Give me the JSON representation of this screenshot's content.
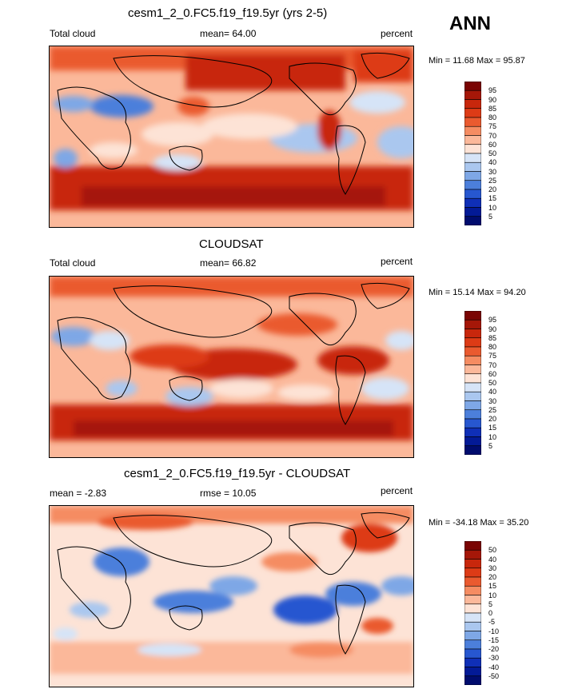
{
  "header": {
    "season": "ANN"
  },
  "chart_data": [
    {
      "type": "heatmap",
      "title": "cesm1_2_0.FC5.f19_f19.5yr (yrs 2-5)",
      "left_label": "Total cloud",
      "center_label": "mean=  64.00",
      "right_label": "percent",
      "minmax_label": "Min =  11.68 Max =  95.87",
      "min": 11.68,
      "max": 95.87,
      "mean": 64.0,
      "colorbar": {
        "levels": [
          "95",
          "90",
          "85",
          "80",
          "75",
          "70",
          "60",
          "50",
          "40",
          "30",
          "25",
          "20",
          "15",
          "10",
          "5"
        ],
        "colors": [
          "#7a0403",
          "#a51708",
          "#c8270c",
          "#dd3b16",
          "#ea5a2f",
          "#f58c62",
          "#fbb89a",
          "#fde3d6",
          "#d6e4f7",
          "#aac7ef",
          "#7ea7e6",
          "#4c7fdb",
          "#2757d0",
          "#0f2fb7",
          "#031a96",
          "#000c6e"
        ]
      }
    },
    {
      "type": "heatmap",
      "title": "CLOUDSAT",
      "left_label": "Total cloud",
      "center_label": "mean=  66.82",
      "right_label": "percent",
      "minmax_label": "Min =  15.14 Max =  94.20",
      "min": 15.14,
      "max": 94.2,
      "mean": 66.82,
      "colorbar": {
        "levels": [
          "95",
          "90",
          "85",
          "80",
          "75",
          "70",
          "60",
          "50",
          "40",
          "30",
          "25",
          "20",
          "15",
          "10",
          "5"
        ],
        "colors": [
          "#7a0403",
          "#a51708",
          "#c8270c",
          "#dd3b16",
          "#ea5a2f",
          "#f58c62",
          "#fbb89a",
          "#fde3d6",
          "#d6e4f7",
          "#aac7ef",
          "#7ea7e6",
          "#4c7fdb",
          "#2757d0",
          "#0f2fb7",
          "#031a96",
          "#000c6e"
        ]
      }
    },
    {
      "type": "heatmap",
      "title": "cesm1_2_0.FC5.f19_f19.5yr - CLOUDSAT",
      "left_label": "mean =  -2.83",
      "center_label": "rmse =  10.05",
      "right_label": "percent",
      "minmax_label": "Min = -34.18 Max =  35.20",
      "min": -34.18,
      "max": 35.2,
      "mean": -2.83,
      "rmse": 10.05,
      "colorbar": {
        "levels": [
          "50",
          "40",
          "30",
          "20",
          "15",
          "10",
          "5",
          "0",
          "-5",
          "-10",
          "-15",
          "-20",
          "-30",
          "-40",
          "-50"
        ],
        "colors": [
          "#7a0403",
          "#a51708",
          "#c8270c",
          "#dd3b16",
          "#ea5a2f",
          "#f58c62",
          "#fbb89a",
          "#fde3d6",
          "#d6e4f7",
          "#aac7ef",
          "#7ea7e6",
          "#4c7fdb",
          "#2757d0",
          "#0f2fb7",
          "#031a96",
          "#000c6e"
        ]
      }
    }
  ]
}
